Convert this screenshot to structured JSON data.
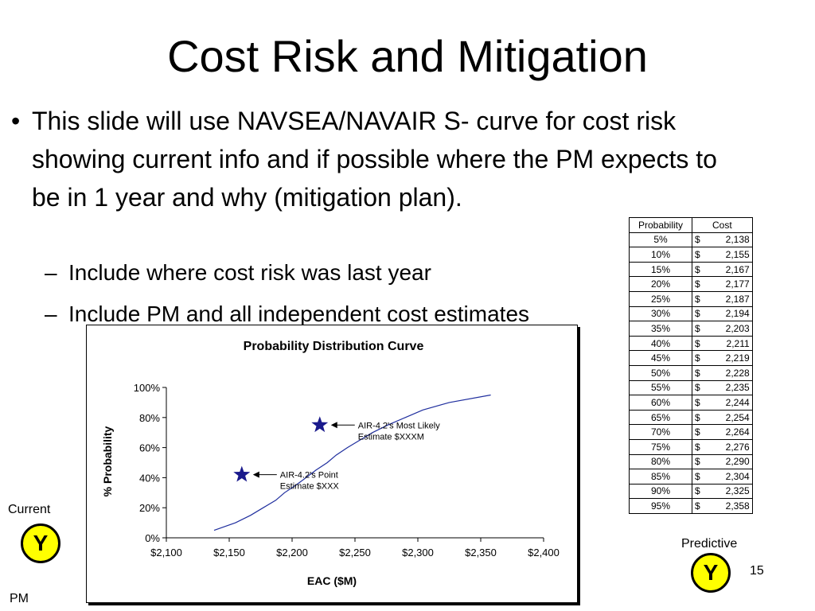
{
  "slide": {
    "title": "Cost Risk and Mitigation",
    "bullet_symbol": "•",
    "bullet": "This slide will use NAVSEA/NAVAIR S- curve for cost risk showing current info and if possible where the PM expects to be in 1 year and why (mitigation plan).",
    "sub_bullets": [
      "Include where cost risk was last year",
      "Include PM and all independent cost estimates"
    ],
    "sub_bullet_symbol": "–",
    "current_label": "Current",
    "current_badge": "Y",
    "pm_label": "PM",
    "predictive_label": "Predictive",
    "predictive_badge": "Y",
    "page_number": "15"
  },
  "table": {
    "headers": [
      "Probability",
      "Cost"
    ],
    "currency": "$",
    "rows": [
      [
        "5%",
        "2,138"
      ],
      [
        "10%",
        "2,155"
      ],
      [
        "15%",
        "2,167"
      ],
      [
        "20%",
        "2,177"
      ],
      [
        "25%",
        "2,187"
      ],
      [
        "30%",
        "2,194"
      ],
      [
        "35%",
        "2,203"
      ],
      [
        "40%",
        "2,211"
      ],
      [
        "45%",
        "2,219"
      ],
      [
        "50%",
        "2,228"
      ],
      [
        "55%",
        "2,235"
      ],
      [
        "60%",
        "2,244"
      ],
      [
        "65%",
        "2,254"
      ],
      [
        "70%",
        "2,264"
      ],
      [
        "75%",
        "2,276"
      ],
      [
        "80%",
        "2,290"
      ],
      [
        "85%",
        "2,304"
      ],
      [
        "90%",
        "2,325"
      ],
      [
        "95%",
        "2,358"
      ]
    ]
  },
  "chart_data": {
    "type": "line",
    "title": "Probability Distribution Curve",
    "xlabel": "EAC ($M)",
    "ylabel": "% Probability",
    "xlim": [
      2100,
      2400
    ],
    "ylim": [
      0,
      100
    ],
    "x_ticks": [
      "$2,100",
      "$2,150",
      "$2,200",
      "$2,250",
      "$2,300",
      "$2,350",
      "$2,400"
    ],
    "y_ticks": [
      "0%",
      "20%",
      "40%",
      "60%",
      "80%",
      "100%"
    ],
    "grid": false,
    "series": [
      {
        "x": [
          2138,
          2155,
          2167,
          2177,
          2187,
          2194,
          2203,
          2211,
          2219,
          2228,
          2235,
          2244,
          2254,
          2264,
          2276,
          2290,
          2304,
          2325,
          2358
        ],
        "y": [
          5,
          10,
          15,
          20,
          25,
          30,
          35,
          40,
          45,
          50,
          55,
          60,
          65,
          70,
          75,
          80,
          85,
          90,
          95
        ],
        "color": "#1f2e9e"
      }
    ],
    "markers": [
      {
        "x": 2160,
        "y": 42,
        "label": [
          "AIR-4.2's Point",
          "Estimate $XXX"
        ]
      },
      {
        "x": 2222,
        "y": 75,
        "label": [
          "AIR-4.2's Most Likely",
          "Estimate $XXXM"
        ]
      }
    ],
    "marker_color": "#1a1a8c"
  }
}
